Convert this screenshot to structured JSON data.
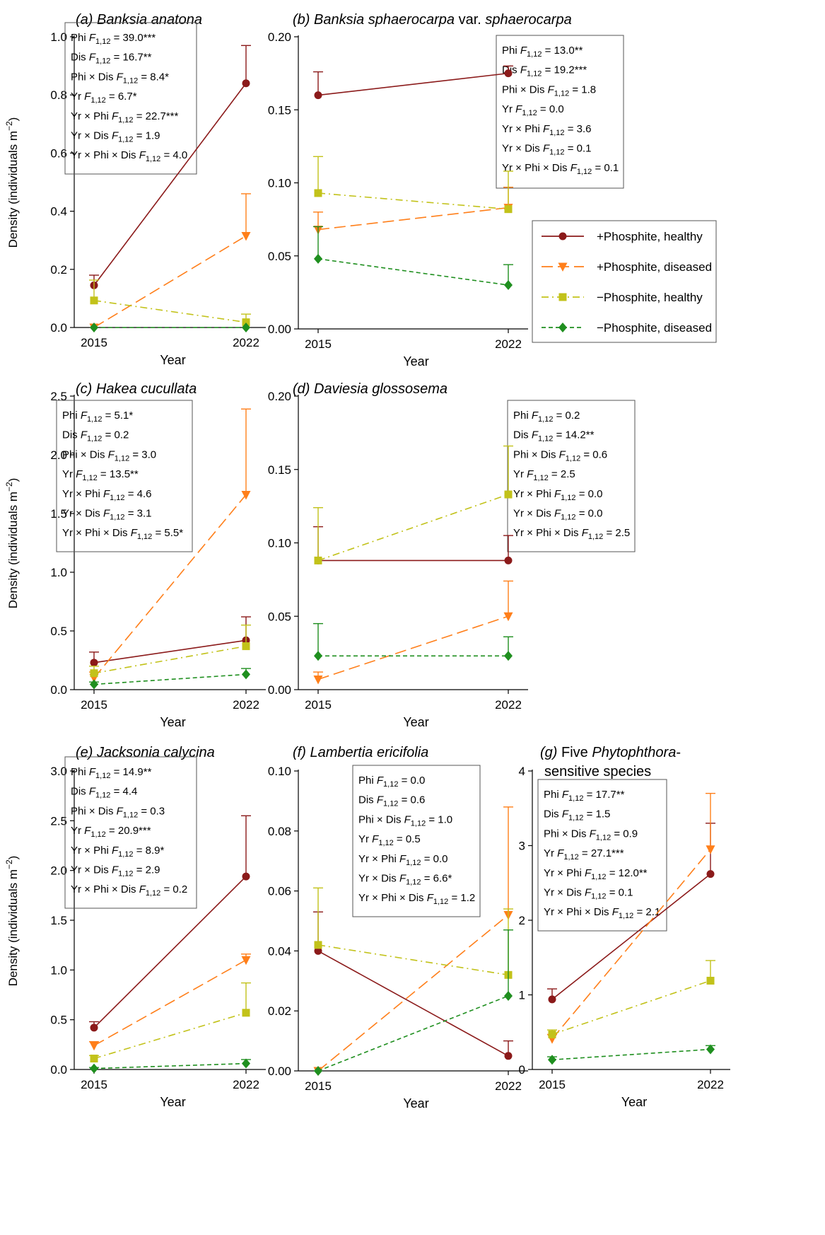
{
  "figure": {
    "y_axis_label_main": "Density (individuals m",
    "y_axis_label_sup": "−2",
    "y_axis_label_close": ")"
  },
  "colors": {
    "phi_healthy": "#8b1a1a",
    "phi_diseased": "#ff7f1a",
    "nophi_healthy": "#c2c21a",
    "nophi_diseased": "#1f8f1f"
  },
  "legend": [
    {
      "key": "phi_healthy",
      "label": "+Phosphite, healthy",
      "marker": "circle",
      "dash": "solid"
    },
    {
      "key": "phi_diseased",
      "label": "+Phosphite, diseased",
      "marker": "triangle-down",
      "dash": "longdash"
    },
    {
      "key": "nophi_healthy",
      "label": "−Phosphite, healthy",
      "marker": "square",
      "dash": "dashdot"
    },
    {
      "key": "nophi_diseased",
      "label": "−Phosphite, diseased",
      "marker": "diamond",
      "dash": "shortdash"
    }
  ],
  "chart_data": [
    {
      "id": "a",
      "type": "line",
      "label_prefix": "(a)",
      "title_italic": "Banksia anatona",
      "title_normal": "",
      "title_italic2": "",
      "title_normal2": "",
      "xlabel": "Year",
      "ylabel": "Density (individuals m−2)",
      "x": [
        "2015",
        "2022"
      ],
      "ylim": [
        0,
        1.0
      ],
      "yticks": [
        "0.0",
        "0.2",
        "0.4",
        "0.6",
        "0.8",
        "1.0"
      ],
      "stats": [
        {
          "term": "Phi",
          "value": "= 39.0***"
        },
        {
          "term": "Dis",
          "value": "= 16.7**"
        },
        {
          "term": "Phi × Dis",
          "value": "= 8.4*"
        },
        {
          "term": "Yr",
          "value": "= 6.7*"
        },
        {
          "term": "Yr × Phi",
          "value": "= 22.7***"
        },
        {
          "term": "Yr × Dis",
          "value": "= 1.9"
        },
        {
          "term": "Yr × Phi × Dis",
          "value": "= 4.0"
        }
      ],
      "series": [
        {
          "key": "phi_healthy",
          "values": [
            0.145,
            0.84
          ],
          "se": [
            0.035,
            0.13
          ]
        },
        {
          "key": "phi_diseased",
          "values": [
            0.0,
            0.315
          ],
          "se": [
            0,
            0.145
          ]
        },
        {
          "key": "nophi_healthy",
          "values": [
            0.093,
            0.018
          ],
          "se": [
            0.07,
            0.028
          ]
        },
        {
          "key": "nophi_diseased",
          "values": [
            0.0,
            0.0
          ],
          "se": [
            0,
            0
          ]
        }
      ]
    },
    {
      "id": "b",
      "type": "line",
      "label_prefix": "(b)",
      "title_italic": "Banksia sphaerocarpa",
      "title_normal": " var. ",
      "title_italic2": "sphaerocarpa",
      "title_normal2": "",
      "xlabel": "Year",
      "ylabel": "",
      "x": [
        "2015",
        "2022"
      ],
      "ylim": [
        0,
        0.2
      ],
      "yticks": [
        "0.00",
        "0.05",
        "0.10",
        "0.15",
        "0.20"
      ],
      "stats": [
        {
          "term": "Phi",
          "value": "= 13.0**"
        },
        {
          "term": "Dis",
          "value": "= 19.2***"
        },
        {
          "term": "Phi × Dis",
          "value": "= 1.8"
        },
        {
          "term": "Yr",
          "value": "= 0.0"
        },
        {
          "term": "Yr × Phi",
          "value": "= 3.6"
        },
        {
          "term": "Yr × Dis",
          "value": "= 0.1"
        },
        {
          "term": "Yr × Phi × Dis",
          "value": "= 0.1"
        }
      ],
      "series": [
        {
          "key": "phi_healthy",
          "values": [
            0.16,
            0.175
          ],
          "se": [
            0.016,
            0.005
          ]
        },
        {
          "key": "phi_diseased",
          "values": [
            0.068,
            0.083
          ],
          "se": [
            0.012,
            0.014
          ]
        },
        {
          "key": "nophi_healthy",
          "values": [
            0.093,
            0.082
          ],
          "se": [
            0.025,
            0.026
          ]
        },
        {
          "key": "nophi_diseased",
          "values": [
            0.048,
            0.03
          ],
          "se": [
            0.022,
            0.014
          ]
        }
      ]
    },
    {
      "id": "c",
      "type": "line",
      "label_prefix": "(c)",
      "title_italic": "Hakea cucullata",
      "title_normal": "",
      "title_italic2": "",
      "title_normal2": "",
      "xlabel": "Year",
      "ylabel": "Density (individuals m−2)",
      "x": [
        "2015",
        "2022"
      ],
      "ylim": [
        0,
        2.5
      ],
      "yticks": [
        "0.0",
        "0.5",
        "1.0",
        "1.5",
        "2.0",
        "2.5"
      ],
      "stats": [
        {
          "term": "Phi",
          "value": "= 5.1*"
        },
        {
          "term": "Dis",
          "value": "= 0.2"
        },
        {
          "term": "Phi × Dis",
          "value": "= 3.0"
        },
        {
          "term": "Yr",
          "value": "= 13.5**"
        },
        {
          "term": "Yr × Phi",
          "value": "= 4.6"
        },
        {
          "term": "Yr × Dis",
          "value": "= 3.1"
        },
        {
          "term": "Yr × Phi × Dis",
          "value": "= 5.5*"
        }
      ],
      "series": [
        {
          "key": "phi_healthy",
          "values": [
            0.23,
            0.42
          ],
          "se": [
            0.09,
            0.2
          ]
        },
        {
          "key": "phi_diseased",
          "values": [
            0.1,
            1.66
          ],
          "se": [
            0.05,
            0.73
          ]
        },
        {
          "key": "nophi_healthy",
          "values": [
            0.14,
            0.37
          ],
          "se": [
            0.06,
            0.18
          ]
        },
        {
          "key": "nophi_diseased",
          "values": [
            0.045,
            0.13
          ],
          "se": [
            0.02,
            0.05
          ]
        }
      ]
    },
    {
      "id": "d",
      "type": "line",
      "label_prefix": "(d)",
      "title_italic": "Daviesia glossosema",
      "title_normal": "",
      "title_italic2": "",
      "title_normal2": "",
      "xlabel": "Year",
      "ylabel": "",
      "x": [
        "2015",
        "2022"
      ],
      "ylim": [
        0,
        0.2
      ],
      "yticks": [
        "0.00",
        "0.05",
        "0.10",
        "0.15",
        "0.20"
      ],
      "stats": [
        {
          "term": "Phi",
          "value": "= 0.2"
        },
        {
          "term": "Dis",
          "value": "= 14.2**"
        },
        {
          "term": "Phi × Dis",
          "value": "= 0.6"
        },
        {
          "term": "Yr",
          "value": "= 2.5"
        },
        {
          "term": "Yr × Phi",
          "value": "= 0.0"
        },
        {
          "term": "Yr × Dis",
          "value": "= 0.0"
        },
        {
          "term": "Yr × Phi × Dis",
          "value": "= 2.5"
        }
      ],
      "series": [
        {
          "key": "phi_healthy",
          "values": [
            0.088,
            0.088
          ],
          "se": [
            0.023,
            0.017
          ]
        },
        {
          "key": "phi_diseased",
          "values": [
            0.007,
            0.05
          ],
          "se": [
            0.005,
            0.024
          ]
        },
        {
          "key": "nophi_healthy",
          "values": [
            0.088,
            0.133
          ],
          "se": [
            0.036,
            0.033
          ]
        },
        {
          "key": "nophi_diseased",
          "values": [
            0.023,
            0.023
          ],
          "se": [
            0.022,
            0.013
          ]
        }
      ]
    },
    {
      "id": "e",
      "type": "line",
      "label_prefix": "(e)",
      "title_italic": "Jacksonia calycina",
      "title_normal": "",
      "title_italic2": "",
      "title_normal2": "",
      "xlabel": "Year",
      "ylabel": "Density (individuals m−2)",
      "x": [
        "2015",
        "2022"
      ],
      "ylim": [
        0,
        3.0
      ],
      "yticks": [
        "0.0",
        "0.5",
        "1.0",
        "1.5",
        "2.0",
        "2.5",
        "3.0"
      ],
      "stats": [
        {
          "term": "Phi",
          "value": "= 14.9**"
        },
        {
          "term": "Dis",
          "value": "= 4.4"
        },
        {
          "term": "Phi × Dis",
          "value": "= 0.3"
        },
        {
          "term": "Yr",
          "value": "= 20.9***"
        },
        {
          "term": "Yr × Phi",
          "value": "= 8.9*"
        },
        {
          "term": "Yr × Dis",
          "value": "= 2.9"
        },
        {
          "term": "Yr × Phi × Dis",
          "value": "= 0.2"
        }
      ],
      "series": [
        {
          "key": "phi_healthy",
          "values": [
            0.42,
            1.94
          ],
          "se": [
            0.06,
            0.61
          ]
        },
        {
          "key": "phi_diseased",
          "values": [
            0.24,
            1.1
          ],
          "se": [
            0.04,
            0.06
          ]
        },
        {
          "key": "nophi_healthy",
          "values": [
            0.11,
            0.57
          ],
          "se": [
            0.03,
            0.3
          ]
        },
        {
          "key": "nophi_diseased",
          "values": [
            0.01,
            0.06
          ],
          "se": [
            0.01,
            0.04
          ]
        }
      ]
    },
    {
      "id": "f",
      "type": "line",
      "label_prefix": "(f)",
      "title_italic": "Lambertia ericifolia",
      "title_normal": "",
      "title_italic2": "",
      "title_normal2": "",
      "xlabel": "Year",
      "ylabel": "",
      "x": [
        "2015",
        "2022"
      ],
      "ylim": [
        0,
        0.1
      ],
      "yticks": [
        "0.00",
        "0.02",
        "0.04",
        "0.06",
        "0.08",
        "0.10"
      ],
      "stats": [
        {
          "term": "Phi",
          "value": "= 0.0"
        },
        {
          "term": "Dis",
          "value": "= 0.6"
        },
        {
          "term": "Phi × Dis",
          "value": "= 1.0"
        },
        {
          "term": "Yr",
          "value": "= 0.5"
        },
        {
          "term": "Yr × Phi",
          "value": "= 0.0"
        },
        {
          "term": "Yr × Dis",
          "value": "= 6.6*"
        },
        {
          "term": "Yr × Phi × Dis",
          "value": "= 1.2"
        }
      ],
      "series": [
        {
          "key": "phi_healthy",
          "values": [
            0.04,
            0.005
          ],
          "se": [
            0.013,
            0.005
          ]
        },
        {
          "key": "phi_diseased",
          "values": [
            0.0,
            0.052
          ],
          "se": [
            0,
            0.036
          ]
        },
        {
          "key": "nophi_healthy",
          "values": [
            0.042,
            0.032
          ],
          "se": [
            0.019,
            0.022
          ]
        },
        {
          "key": "nophi_diseased",
          "values": [
            0.0,
            0.025
          ],
          "se": [
            0,
            0.022
          ]
        }
      ]
    },
    {
      "id": "g",
      "type": "line",
      "label_prefix": "(g)",
      "title_italic": "",
      "title_normal": " Five ",
      "title_italic2": "Phytophthora",
      "title_normal2": "-",
      "title_line2": "sensitive species",
      "xlabel": "Year",
      "ylabel": "",
      "x": [
        "2015",
        "2022"
      ],
      "ylim": [
        0,
        4
      ],
      "yticks": [
        "0",
        "1",
        "2",
        "3",
        "4"
      ],
      "stats": [
        {
          "term": "Phi",
          "value": "= 17.7**"
        },
        {
          "term": "Dis",
          "value": "= 1.5"
        },
        {
          "term": "Phi × Dis",
          "value": "= 0.9"
        },
        {
          "term": "Yr",
          "value": "= 27.1***"
        },
        {
          "term": "Yr × Phi",
          "value": "= 12.0**"
        },
        {
          "term": "Yr × Dis",
          "value": "= 0.1"
        },
        {
          "term": "Yr × Phi × Dis",
          "value": "= 2.1"
        }
      ],
      "series": [
        {
          "key": "phi_healthy",
          "values": [
            0.94,
            2.62
          ],
          "se": [
            0.14,
            0.68
          ]
        },
        {
          "key": "phi_diseased",
          "values": [
            0.41,
            2.95
          ],
          "se": [
            0.06,
            0.75
          ]
        },
        {
          "key": "nophi_healthy",
          "values": [
            0.47,
            1.19
          ],
          "se": [
            0.06,
            0.27
          ]
        },
        {
          "key": "nophi_diseased",
          "values": [
            0.13,
            0.27
          ],
          "se": [
            0.04,
            0.05
          ]
        }
      ]
    }
  ]
}
